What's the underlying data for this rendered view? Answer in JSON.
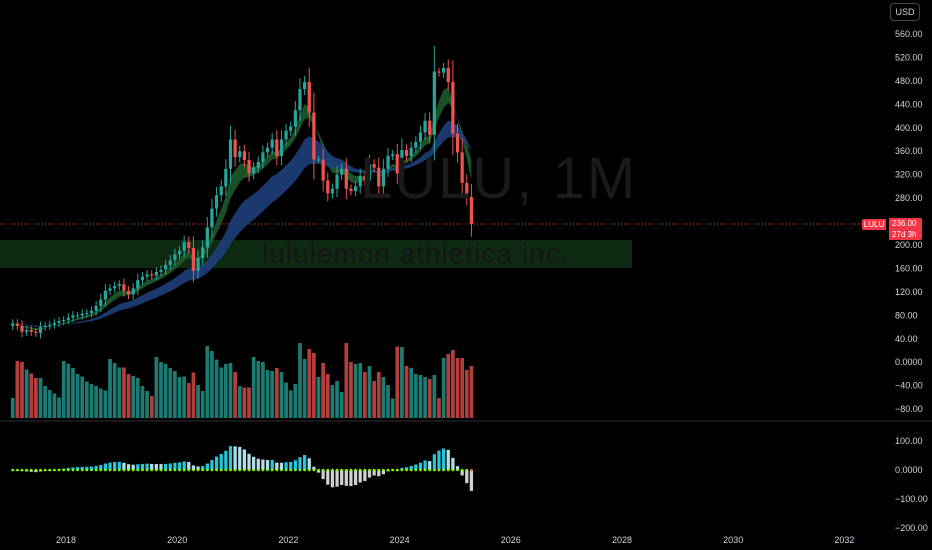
{
  "symbol": "LULU",
  "interval": "1M",
  "company_name": "lululemon athletica inc.",
  "currency_button": "USD",
  "current_price": "236.00",
  "countdown": "27d 3h",
  "colors": {
    "up": "#26a69a",
    "down": "#ef5350",
    "price_line": "#f23645",
    "ema_fast": "#1e5a2a",
    "ema_slow": "#1e3f7a",
    "zone": "#0f2a12",
    "macd_pos_strong": "#26c6da",
    "macd_pos_weak": "#b2dfe8",
    "macd_neg_weak": "#d0d0d0",
    "macd_dot": "#7cfc00"
  },
  "price_axis": {
    "ticks": [
      "560.00",
      "520.00",
      "480.00",
      "440.00",
      "400.00",
      "360.00",
      "320.00",
      "280.00",
      "240.00",
      "200.00",
      "160.00",
      "120.00",
      "80.00",
      "40.00",
      "0.0000",
      "−40.00",
      "−80.00"
    ]
  },
  "osc_axis": {
    "ticks": [
      "100.00",
      "0.0000",
      "−100.00",
      "−200.00"
    ]
  },
  "time_axis": {
    "ticks": [
      "2018",
      "2020",
      "2022",
      "2024",
      "2026",
      "2028",
      "2030",
      "2032"
    ]
  },
  "chart_data": {
    "type": "candlestick",
    "symbol": "LULU",
    "interval": "1M",
    "ylim": [
      -100,
      580
    ],
    "support_zone": [
      160,
      200
    ],
    "last_price": 236.0,
    "ohlc_monthly_from": "2017-01",
    "close": [
      66,
      62,
      52,
      55,
      52,
      50,
      60,
      62,
      64,
      67,
      70,
      72,
      76,
      80,
      80,
      83,
      84,
      88,
      96,
      107,
      122,
      126,
      130,
      133,
      122,
      116,
      126,
      140,
      146,
      150,
      148,
      154,
      158,
      166,
      174,
      184,
      190,
      205,
      195,
      156,
      178,
      196,
      230,
      262,
      285,
      300,
      330,
      380,
      350,
      360,
      345,
      322,
      332,
      342,
      358,
      366,
      380,
      352,
      380,
      395,
      402,
      430,
      466,
      478,
      426,
      346,
      346,
      310,
      288,
      296,
      320,
      330,
      296,
      292,
      300,
      318,
      310,
      338,
      332,
      300,
      330,
      352,
      355,
      322,
      362,
      352,
      366,
      376,
      392,
      412,
      388,
      496,
      494,
      502,
      478,
      390,
      358,
      306,
      282,
      236
    ]
  }
}
